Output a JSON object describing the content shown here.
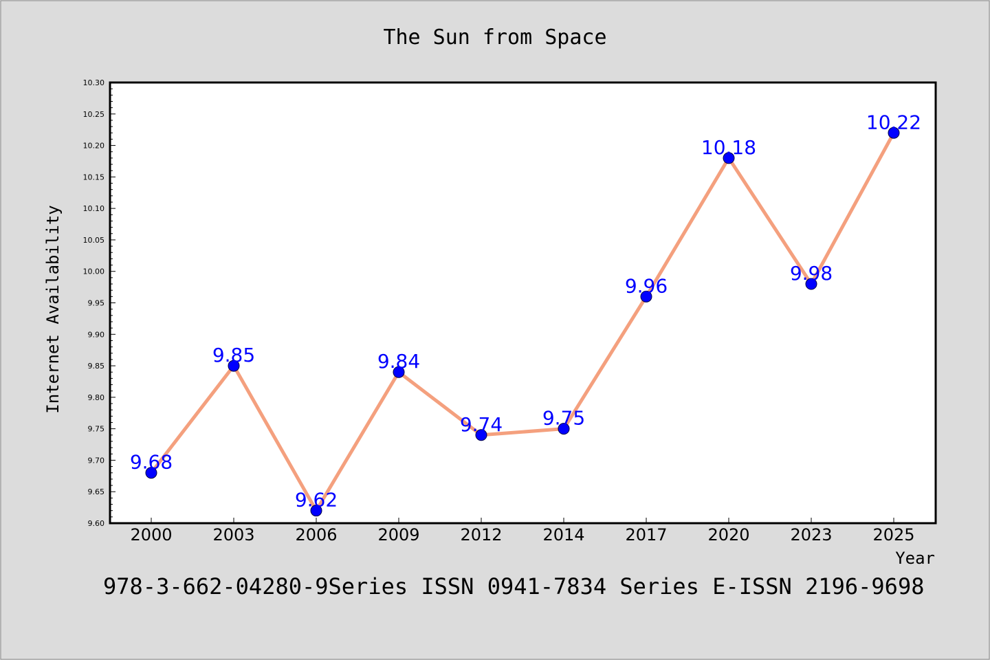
{
  "chart_data": {
    "type": "line",
    "title": "The Sun from Space",
    "xlabel": "Year",
    "ylabel": "Internet Availability",
    "categories": [
      "2000",
      "2003",
      "2006",
      "2009",
      "2012",
      "2014",
      "2017",
      "2020",
      "2023",
      "2025"
    ],
    "series": [
      {
        "values": [
          9.68,
          9.85,
          9.62,
          9.84,
          9.74,
          9.75,
          9.96,
          10.18,
          9.98,
          10.22
        ]
      }
    ],
    "data_labels": [
      "9.68",
      "9.85",
      "9.62",
      "9.84",
      "9.74",
      "9.75",
      "9.96",
      "10.18",
      "9.98",
      "10.22"
    ],
    "ylim": [
      9.6,
      10.3
    ],
    "yticks": [
      "9.60",
      "9.65",
      "9.70",
      "9.75",
      "9.80",
      "9.85",
      "9.90",
      "9.95",
      "10.00",
      "10.05",
      "10.10",
      "10.15",
      "10.20",
      "10.25",
      "10.30"
    ],
    "grid": false,
    "legend": "none",
    "colors": {
      "line": "#f4a07e",
      "marker": "#0000ff",
      "label": "#0000ff",
      "background": "#dcdcdc",
      "plot_background": "#ffffff"
    }
  },
  "footer_text": "978-3-662-04280-9Series ISSN 0941-7834 Series E-ISSN 2196-9698"
}
